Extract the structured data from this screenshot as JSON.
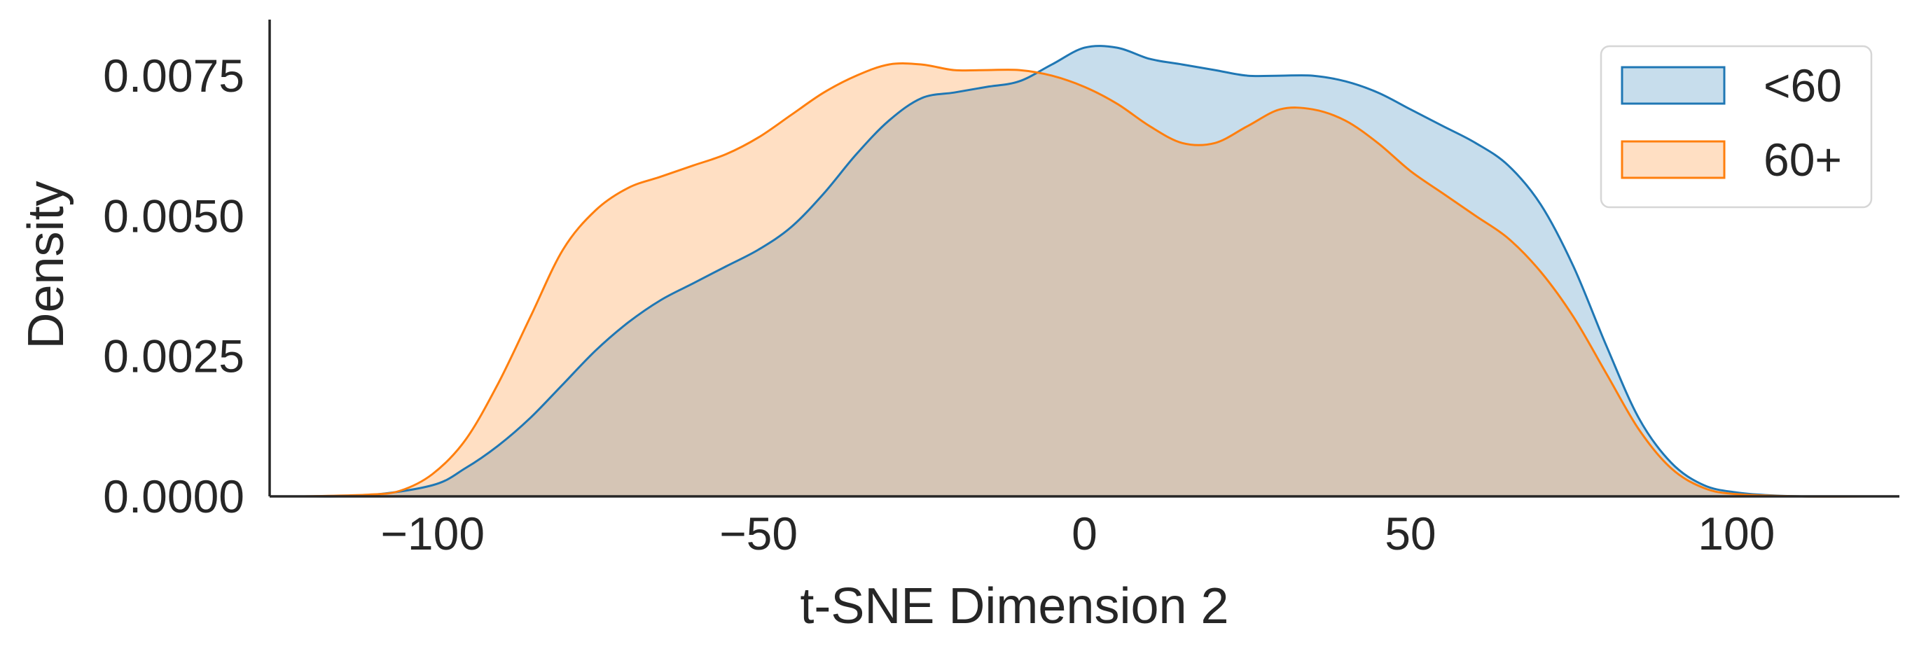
{
  "chart_data": {
    "type": "area",
    "title": "",
    "xlabel": "t-SNE Dimension 2",
    "ylabel": "Density",
    "xlim": [
      -125,
      125
    ],
    "ylim": [
      0,
      0.0085
    ],
    "x_ticks": [
      -100,
      -50,
      0,
      50,
      100
    ],
    "x_tick_labels": [
      "−100",
      "−50",
      "0",
      "50",
      "100"
    ],
    "y_ticks": [
      0,
      0.0025,
      0.005,
      0.0075
    ],
    "y_tick_labels": [
      "0.0000",
      "0.0025",
      "0.0050",
      "0.0075"
    ],
    "grid": false,
    "legend_position": "top-right",
    "series": [
      {
        "name": "<60",
        "line_color": "#1f77b4",
        "fill_color": "#c6dcee",
        "points": [
          [
            -120,
            0.0
          ],
          [
            -110,
            2e-05
          ],
          [
            -100,
            0.0002
          ],
          [
            -95,
            0.0005
          ],
          [
            -90,
            0.0009
          ],
          [
            -85,
            0.0014
          ],
          [
            -80,
            0.002
          ],
          [
            -75,
            0.0026
          ],
          [
            -70,
            0.0031
          ],
          [
            -65,
            0.0035
          ],
          [
            -60,
            0.0038
          ],
          [
            -55,
            0.0041
          ],
          [
            -50,
            0.0044
          ],
          [
            -45,
            0.0048
          ],
          [
            -40,
            0.0054
          ],
          [
            -35,
            0.0061
          ],
          [
            -30,
            0.0067
          ],
          [
            -25,
            0.0071
          ],
          [
            -20,
            0.0072
          ],
          [
            -15,
            0.0073
          ],
          [
            -10,
            0.0074
          ],
          [
            -5,
            0.0077
          ],
          [
            0,
            0.008
          ],
          [
            5,
            0.008
          ],
          [
            10,
            0.0078
          ],
          [
            15,
            0.0077
          ],
          [
            20,
            0.0076
          ],
          [
            25,
            0.0075
          ],
          [
            30,
            0.0075
          ],
          [
            35,
            0.0075
          ],
          [
            40,
            0.0074
          ],
          [
            45,
            0.0072
          ],
          [
            50,
            0.0069
          ],
          [
            55,
            0.0066
          ],
          [
            60,
            0.0063
          ],
          [
            65,
            0.0059
          ],
          [
            70,
            0.0052
          ],
          [
            75,
            0.0041
          ],
          [
            80,
            0.0027
          ],
          [
            85,
            0.0014
          ],
          [
            90,
            0.0006
          ],
          [
            95,
            0.0002
          ],
          [
            100,
            7e-05
          ],
          [
            105,
            2e-05
          ],
          [
            110,
            0.0
          ],
          [
            120,
            0.0
          ]
        ]
      },
      {
        "name": "60+",
        "line_color": "#ff7f0e",
        "fill_color": "#fddcc0",
        "points": [
          [
            -120,
            0.0
          ],
          [
            -110,
            3e-05
          ],
          [
            -105,
            0.0001
          ],
          [
            -100,
            0.0004
          ],
          [
            -95,
            0.001
          ],
          [
            -90,
            0.002
          ],
          [
            -85,
            0.0032
          ],
          [
            -80,
            0.0044
          ],
          [
            -75,
            0.0051
          ],
          [
            -70,
            0.0055
          ],
          [
            -65,
            0.0057
          ],
          [
            -60,
            0.0059
          ],
          [
            -55,
            0.0061
          ],
          [
            -50,
            0.0064
          ],
          [
            -45,
            0.0068
          ],
          [
            -40,
            0.0072
          ],
          [
            -35,
            0.0075
          ],
          [
            -30,
            0.0077
          ],
          [
            -25,
            0.0077
          ],
          [
            -20,
            0.0076
          ],
          [
            -15,
            0.0076
          ],
          [
            -10,
            0.0076
          ],
          [
            -5,
            0.0075
          ],
          [
            0,
            0.0073
          ],
          [
            5,
            0.007
          ],
          [
            10,
            0.0066
          ],
          [
            15,
            0.0063
          ],
          [
            20,
            0.0063
          ],
          [
            25,
            0.0066
          ],
          [
            30,
            0.0069
          ],
          [
            35,
            0.0069
          ],
          [
            40,
            0.0067
          ],
          [
            45,
            0.0063
          ],
          [
            50,
            0.0058
          ],
          [
            55,
            0.0054
          ],
          [
            60,
            0.005
          ],
          [
            65,
            0.0046
          ],
          [
            70,
            0.004
          ],
          [
            75,
            0.0032
          ],
          [
            80,
            0.0022
          ],
          [
            85,
            0.0012
          ],
          [
            90,
            0.0005
          ],
          [
            95,
            0.00015
          ],
          [
            100,
            4e-05
          ],
          [
            110,
            0.0
          ],
          [
            120,
            0.0
          ]
        ]
      }
    ]
  }
}
